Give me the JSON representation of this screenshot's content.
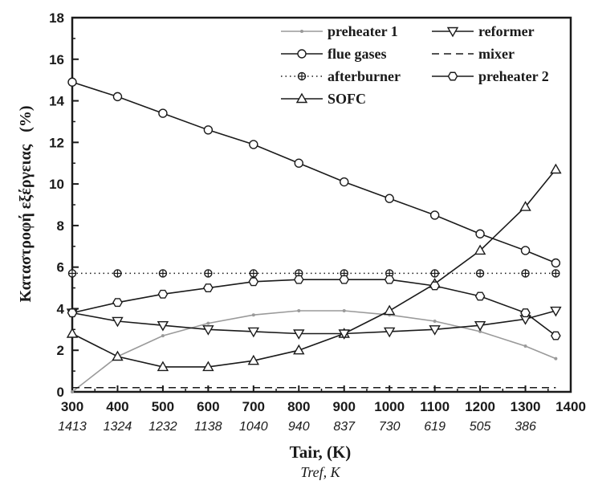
{
  "chart_data": {
    "type": "line",
    "xlabel": "Tair, (K)",
    "x2label": "Tref, K",
    "ylabel": "Καταστροφή εξέργειας   (%)",
    "xlim": [
      300,
      1400
    ],
    "ylim": [
      0,
      18
    ],
    "xticks": [
      "300",
      "400",
      "500",
      "600",
      "700",
      "800",
      "900",
      "1000",
      "1100",
      "1200",
      "1300",
      "1400"
    ],
    "x2ticks": [
      "1413",
      "1324",
      "1232",
      "1138",
      "1040",
      "940",
      "837",
      "730",
      "619",
      "505",
      "386"
    ],
    "yticks": [
      "0",
      "2",
      "4",
      "6",
      "8",
      "10",
      "12",
      "14",
      "16",
      "18"
    ],
    "x": [
      300,
      400,
      500,
      600,
      700,
      800,
      900,
      1000,
      1100,
      1200,
      1300,
      1367
    ],
    "series": [
      {
        "name": "preheater 1",
        "marker": "dot",
        "dash": "solid",
        "color": "#9a9a9a",
        "values": [
          0.0,
          1.7,
          2.7,
          3.3,
          3.7,
          3.9,
          3.9,
          3.7,
          3.4,
          2.9,
          2.2,
          1.6
        ]
      },
      {
        "name": "flue gases",
        "marker": "circle",
        "dash": "solid",
        "color": "#1a1a1a",
        "values": [
          14.9,
          14.2,
          13.4,
          12.6,
          11.9,
          11.0,
          10.1,
          9.3,
          8.5,
          7.6,
          6.8,
          6.2
        ]
      },
      {
        "name": "afterburner",
        "marker": "crossed-circle",
        "dash": "dotted",
        "color": "#1a1a1a",
        "values": [
          5.7,
          5.7,
          5.7,
          5.7,
          5.7,
          5.7,
          5.7,
          5.7,
          5.7,
          5.7,
          5.7,
          5.7
        ]
      },
      {
        "name": "SOFC",
        "marker": "triangle-up",
        "dash": "solid",
        "color": "#1a1a1a",
        "values": [
          2.8,
          1.7,
          1.2,
          1.2,
          1.5,
          2.0,
          2.8,
          3.9,
          5.2,
          6.8,
          8.9,
          10.7
        ]
      },
      {
        "name": "reformer",
        "marker": "triangle-down",
        "dash": "solid",
        "color": "#1a1a1a",
        "values": [
          3.8,
          3.4,
          3.2,
          3.0,
          2.9,
          2.8,
          2.8,
          2.9,
          3.0,
          3.2,
          3.5,
          3.9
        ]
      },
      {
        "name": "mixer",
        "marker": "none",
        "dash": "dashed",
        "color": "#1a1a1a",
        "values": [
          0.2,
          0.2,
          0.2,
          0.2,
          0.2,
          0.2,
          0.2,
          0.2,
          0.2,
          0.2,
          0.2,
          0.2
        ]
      },
      {
        "name": "preheater 2",
        "marker": "hexagon",
        "dash": "solid",
        "color": "#1a1a1a",
        "values": [
          3.8,
          4.3,
          4.7,
          5.0,
          5.3,
          5.4,
          5.4,
          5.4,
          5.1,
          4.6,
          3.8,
          2.7
        ]
      }
    ],
    "legend_placement": "top-right",
    "grid": false
  }
}
